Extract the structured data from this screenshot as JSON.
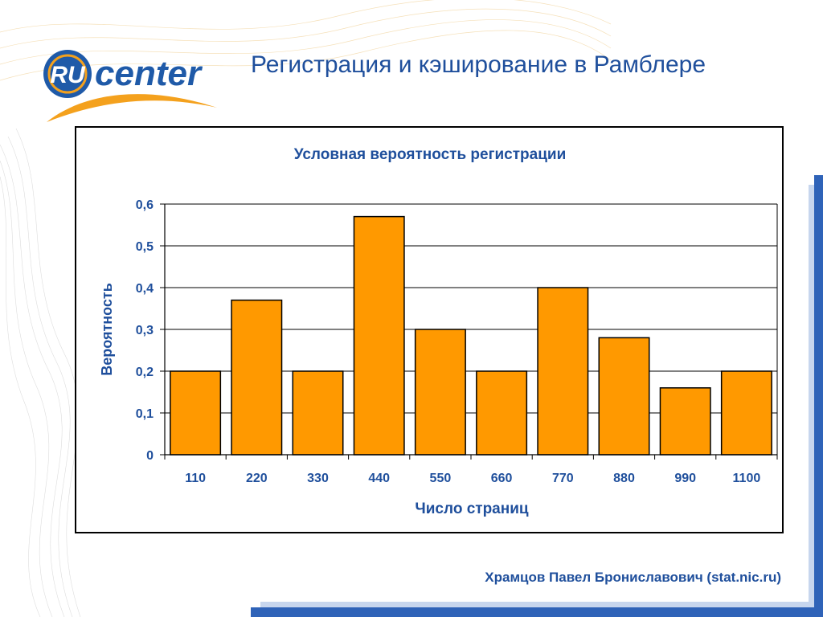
{
  "slide": {
    "title": "Регистрация и кэширование в Рамблере",
    "author": "Храмцов Павел Брониславович (stat.nic.ru)"
  },
  "logo": {
    "badge_text": "RU",
    "word_text": "center",
    "colors": {
      "blue": "#1f5aa8",
      "orange": "#f4a11d"
    }
  },
  "chart_data": {
    "type": "bar",
    "title": "Условная вероятность регистрации",
    "xlabel": "Число страниц",
    "ylabel": "Вероятность",
    "categories": [
      "110",
      "220",
      "330",
      "440",
      "550",
      "660",
      "770",
      "880",
      "990",
      "1100"
    ],
    "values": [
      0.2,
      0.37,
      0.2,
      0.57,
      0.3,
      0.2,
      0.4,
      0.28,
      0.16,
      0.2
    ],
    "ylim": [
      0,
      0.6
    ],
    "yticks": [
      "0",
      "0,1",
      "0,2",
      "0,3",
      "0,4",
      "0,5",
      "0,6"
    ],
    "grid": true,
    "legend": "none",
    "colors": {
      "bar": "#ff9900",
      "bar_stroke": "#000000",
      "text": "#1f4f9c"
    }
  }
}
